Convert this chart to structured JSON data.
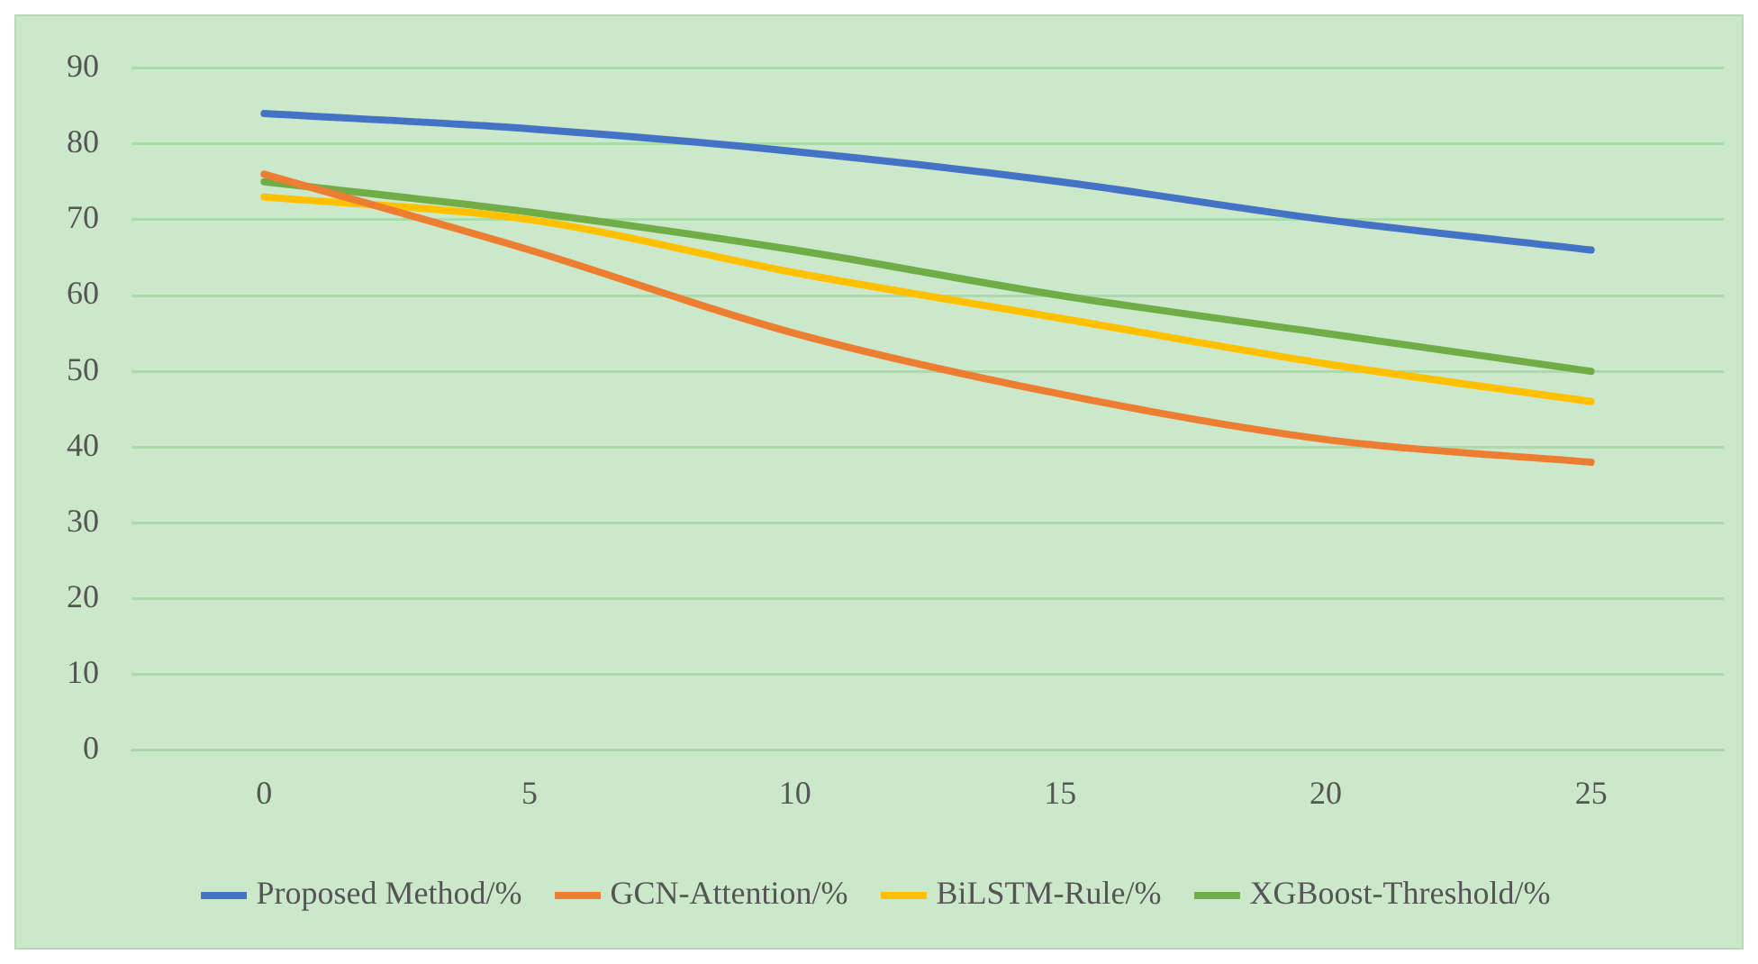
{
  "chart_data": {
    "type": "line",
    "categories": [
      "0",
      "5",
      "10",
      "15",
      "20",
      "25"
    ],
    "series": [
      {
        "name": "Proposed Method/%",
        "color": "#4472c4",
        "values": [
          84,
          82,
          79,
          75,
          70,
          66
        ]
      },
      {
        "name": "GCN-Attention/%",
        "color": "#ed7d31",
        "values": [
          76,
          66,
          55,
          47,
          41,
          38
        ]
      },
      {
        "name": "BiLSTM-Rule/%",
        "color": "#ffc000",
        "values": [
          73,
          70,
          63,
          57,
          51,
          46
        ]
      },
      {
        "name": "XGBoost-Threshold/%",
        "color": "#70ad47",
        "values": [
          75,
          71,
          66,
          60,
          55,
          50
        ]
      }
    ],
    "ylim": [
      0,
      90
    ],
    "yticks": [
      0,
      10,
      20,
      30,
      40,
      50,
      60,
      70,
      80,
      90
    ],
    "grid": "y",
    "legend": "bottom",
    "marker": "none",
    "line_style": "solid"
  }
}
